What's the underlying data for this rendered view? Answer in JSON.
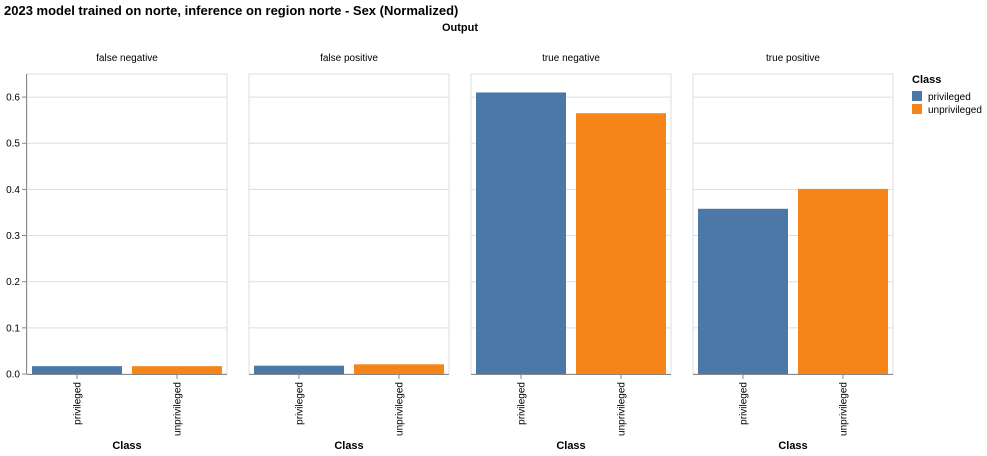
{
  "chart_data": {
    "type": "bar",
    "title": "2023 model trained on norte, inference on region norte - Sex (Normalized)",
    "column_title": "Output",
    "facets": [
      "false negative",
      "false positive",
      "true negative",
      "true positive"
    ],
    "categories": [
      "privileged",
      "unprivileged"
    ],
    "xlabel": "Class",
    "ylabel": "",
    "ylim": [
      0,
      0.65
    ],
    "yticks": [
      0.0,
      0.1,
      0.2,
      0.3,
      0.4,
      0.5,
      0.6
    ],
    "ytick_labels": [
      "0.0",
      "0.1",
      "0.2",
      "0.3",
      "0.4",
      "0.5",
      "0.6"
    ],
    "values": {
      "false negative": [
        0.017,
        0.017
      ],
      "false positive": [
        0.018,
        0.021
      ],
      "true negative": [
        0.61,
        0.565
      ],
      "true positive": [
        0.358,
        0.401
      ]
    },
    "colors": {
      "privileged": "#4c78a8",
      "unprivileged": "#f58518"
    },
    "legend": {
      "title": "Class",
      "placement": "top-right",
      "entries": [
        "privileged",
        "unprivileged"
      ]
    },
    "grid": true
  }
}
